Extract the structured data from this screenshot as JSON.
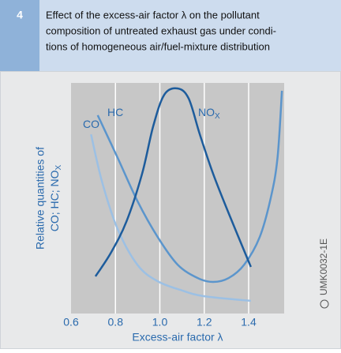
{
  "figure_number": "4",
  "title_lines": [
    "Effect of the excess-air factor λ on the pollutant",
    "composition of untreated exhaust gas under condi-",
    "tions of homogeneous air/fuel-mixture distribution"
  ],
  "code": "UMK0032-1E",
  "chart_data": {
    "type": "line",
    "x_label": "Excess-air factor  λ",
    "y_label": [
      "Relative quantities of",
      "CO;  HC;  NO"
    ],
    "y_label_sub": "X",
    "xlim": [
      0.6,
      1.56
    ],
    "xticks": [
      {
        "value": 0.6,
        "label": "0.6"
      },
      {
        "value": 0.8,
        "label": "0.8"
      },
      {
        "value": 1.0,
        "label": "1.0"
      },
      {
        "value": 1.2,
        "label": "1.2"
      },
      {
        "value": 1.4,
        "label": "1.4"
      }
    ],
    "ylim": [
      0,
      100
    ],
    "grid": true,
    "series": [
      {
        "name": "CO",
        "color": "#9cc0e4",
        "x": [
          0.69,
          0.74,
          0.81,
          0.9,
          0.99,
          1.1,
          1.2,
          1.41
        ],
        "values": [
          77.7,
          57,
          36.6,
          21,
          14,
          10,
          7.5,
          5.5
        ]
      },
      {
        "name": "HC",
        "color": "#5b95cc",
        "x": [
          0.72,
          0.81,
          0.9,
          0.99,
          1.08,
          1.17,
          1.24,
          1.31,
          1.38,
          1.45,
          1.5,
          1.53,
          1.55
        ],
        "values": [
          86,
          67.5,
          48.6,
          33.2,
          21.2,
          15.4,
          13.7,
          15.4,
          21.2,
          33.2,
          50.3,
          67.5,
          96.6
        ]
      },
      {
        "name": "NO",
        "name_sub": "X",
        "color": "#1d5c9c",
        "x": [
          0.71,
          0.78,
          0.85,
          0.92,
          0.97,
          1.02,
          1.08,
          1.13,
          1.18,
          1.24,
          1.31,
          1.41
        ],
        "values": [
          16.1,
          26.4,
          40,
          60.6,
          81.2,
          94.9,
          97.6,
          93.2,
          77.7,
          60.6,
          43.5,
          20.2
        ]
      }
    ]
  }
}
